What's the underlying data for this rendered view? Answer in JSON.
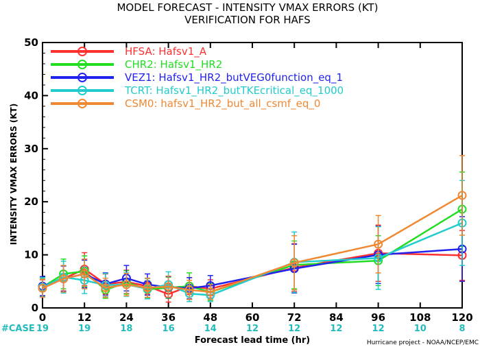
{
  "chart_data": {
    "type": "line",
    "title": "MODEL FORECAST - INTENSITY VMAX ERRORS (KT)",
    "subtitle": "VERIFICATION FOR HAFS",
    "xlabel": "Forecast lead time (hr)",
    "ylabel": "INTENSITY VMAX ERRORS (KT)",
    "xlim": [
      0,
      120
    ],
    "ylim": [
      0,
      50
    ],
    "xticks": [
      0,
      12,
      24,
      36,
      48,
      60,
      72,
      84,
      96,
      108,
      120
    ],
    "yticks": [
      0,
      10,
      20,
      30,
      40,
      50
    ],
    "legend_position": "top-left",
    "case_label": "#CASE",
    "case_counts": [
      {
        "x": 0,
        "n": "19"
      },
      {
        "x": 12,
        "n": "19"
      },
      {
        "x": 24,
        "n": "18"
      },
      {
        "x": 36,
        "n": "16"
      },
      {
        "x": 48,
        "n": "14"
      },
      {
        "x": 60,
        "n": "12"
      },
      {
        "x": 72,
        "n": "12"
      },
      {
        "x": 84,
        "n": "12"
      },
      {
        "x": 96,
        "n": "12"
      },
      {
        "x": 108,
        "n": "10"
      },
      {
        "x": 120,
        "n": "8"
      }
    ],
    "x": [
      0,
      6,
      12,
      18,
      24,
      30,
      36,
      42,
      48,
      72,
      96,
      120
    ],
    "series": [
      {
        "name": "HFSA:  Hafsv1_A",
        "color": "#ff3030",
        "values": [
          3.8,
          5.5,
          7.3,
          4.5,
          4.9,
          4.1,
          2.6,
          4.1,
          3.6,
          7.6,
          10.3,
          9.9
        ],
        "err": [
          [
            2.3,
            5.3
          ],
          [
            3.2,
            7.9
          ],
          [
            4.2,
            10.4
          ],
          [
            2.6,
            6.4
          ],
          [
            2.7,
            7.1
          ],
          [
            2.6,
            5.6
          ],
          [
            1.1,
            4.1
          ],
          [
            2.5,
            5.7
          ],
          [
            1.9,
            5.3
          ],
          [
            3.1,
            12.1
          ],
          [
            5.0,
            15.6
          ],
          [
            5.2,
            14.6
          ]
        ]
      },
      {
        "name": "CHR2:  Hafsv1_HR2",
        "color": "#22dd22",
        "values": [
          3.9,
          6.4,
          6.9,
          3.4,
          4.8,
          3.5,
          3.8,
          4.1,
          3.0,
          8.1,
          8.9,
          18.6
        ],
        "err": [
          [
            2.2,
            5.6
          ],
          [
            3.6,
            9.2
          ],
          [
            4.0,
            9.8
          ],
          [
            1.8,
            5.0
          ],
          [
            2.6,
            7.0
          ],
          [
            1.9,
            5.1
          ],
          [
            1.8,
            5.8
          ],
          [
            1.6,
            6.6
          ],
          [
            1.4,
            4.6
          ],
          [
            3.6,
            12.6
          ],
          [
            4.2,
            13.6
          ],
          [
            11.6,
            25.6
          ]
        ]
      },
      {
        "name": "VEZ1:  Hafsv1_HR2_butVEG0function_eq_1",
        "color": "#2222ee",
        "values": [
          4.1,
          5.5,
          6.4,
          4.5,
          5.6,
          4.4,
          3.9,
          3.7,
          4.2,
          7.4,
          10.0,
          11.1
        ],
        "err": [
          [
            2.3,
            5.9
          ],
          [
            3.1,
            7.9
          ],
          [
            3.8,
            9.0
          ],
          [
            2.4,
            6.6
          ],
          [
            3.2,
            8.0
          ],
          [
            2.4,
            6.4
          ],
          [
            1.9,
            5.9
          ],
          [
            1.7,
            5.7
          ],
          [
            2.3,
            6.1
          ],
          [
            2.8,
            12.0
          ],
          [
            4.6,
            15.4
          ],
          [
            5.0,
            17.2
          ]
        ]
      },
      {
        "name": "TCRT:  Hafsv1_HR2_butTKEcritical_eq_1000",
        "color": "#22cccc",
        "values": [
          3.9,
          5.8,
          5.2,
          4.3,
          4.4,
          3.6,
          4.4,
          2.7,
          2.4,
          8.6,
          9.4,
          16.0
        ],
        "err": [
          [
            2.1,
            5.7
          ],
          [
            2.8,
            8.8
          ],
          [
            2.7,
            7.7
          ],
          [
            2.1,
            6.5
          ],
          [
            2.2,
            6.6
          ],
          [
            1.7,
            5.5
          ],
          [
            2.0,
            6.8
          ],
          [
            1.2,
            4.2
          ],
          [
            1.2,
            3.6
          ],
          [
            2.9,
            14.3
          ],
          [
            3.5,
            15.3
          ],
          [
            8.0,
            24.0
          ]
        ]
      },
      {
        "name": "CSM0:  hafsv1_HR2_but_all_csmf_eq_0",
        "color": "#ee8833",
        "values": [
          3.7,
          5.5,
          6.4,
          3.8,
          4.4,
          3.8,
          4.0,
          3.4,
          3.0,
          8.5,
          12.0,
          21.2
        ],
        "err": [
          [
            2.0,
            5.4
          ],
          [
            3.0,
            8.0
          ],
          [
            3.6,
            9.2
          ],
          [
            2.0,
            5.6
          ],
          [
            2.3,
            6.5
          ],
          [
            2.0,
            5.6
          ],
          [
            2.0,
            6.0
          ],
          [
            1.6,
            5.2
          ],
          [
            1.6,
            4.4
          ],
          [
            3.4,
            13.6
          ],
          [
            6.6,
            17.4
          ],
          [
            13.7,
            28.7
          ]
        ]
      }
    ]
  },
  "footer": {
    "credit": "Hurricane project - NOAA/NCEP/EMC"
  }
}
